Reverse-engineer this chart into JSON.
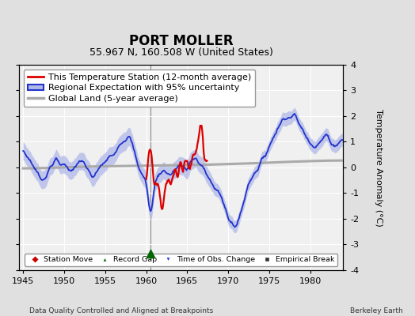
{
  "title": "PORT MOLLER",
  "subtitle": "55.967 N, 160.508 W (United States)",
  "xlabel_left": "Data Quality Controlled and Aligned at Breakpoints",
  "xlabel_right": "Berkeley Earth",
  "ylabel": "Temperature Anomaly (°C)",
  "xlim": [
    1944.5,
    1984.0
  ],
  "ylim": [
    -4,
    4
  ],
  "yticks": [
    -4,
    -3,
    -2,
    -1,
    0,
    1,
    2,
    3,
    4
  ],
  "xticks": [
    1945,
    1950,
    1955,
    1960,
    1965,
    1970,
    1975,
    1980
  ],
  "background_color": "#e0e0e0",
  "plot_background": "#f0f0f0",
  "grid_color": "#ffffff",
  "station_color": "#dd0000",
  "regional_color": "#2233cc",
  "regional_fill_color": "#b0b8e8",
  "global_color": "#aaaaaa",
  "record_gap_x": 1960.5,
  "record_gap_y": -3.35,
  "title_fontsize": 12,
  "subtitle_fontsize": 9,
  "legend_fontsize": 8,
  "axis_fontsize": 8
}
